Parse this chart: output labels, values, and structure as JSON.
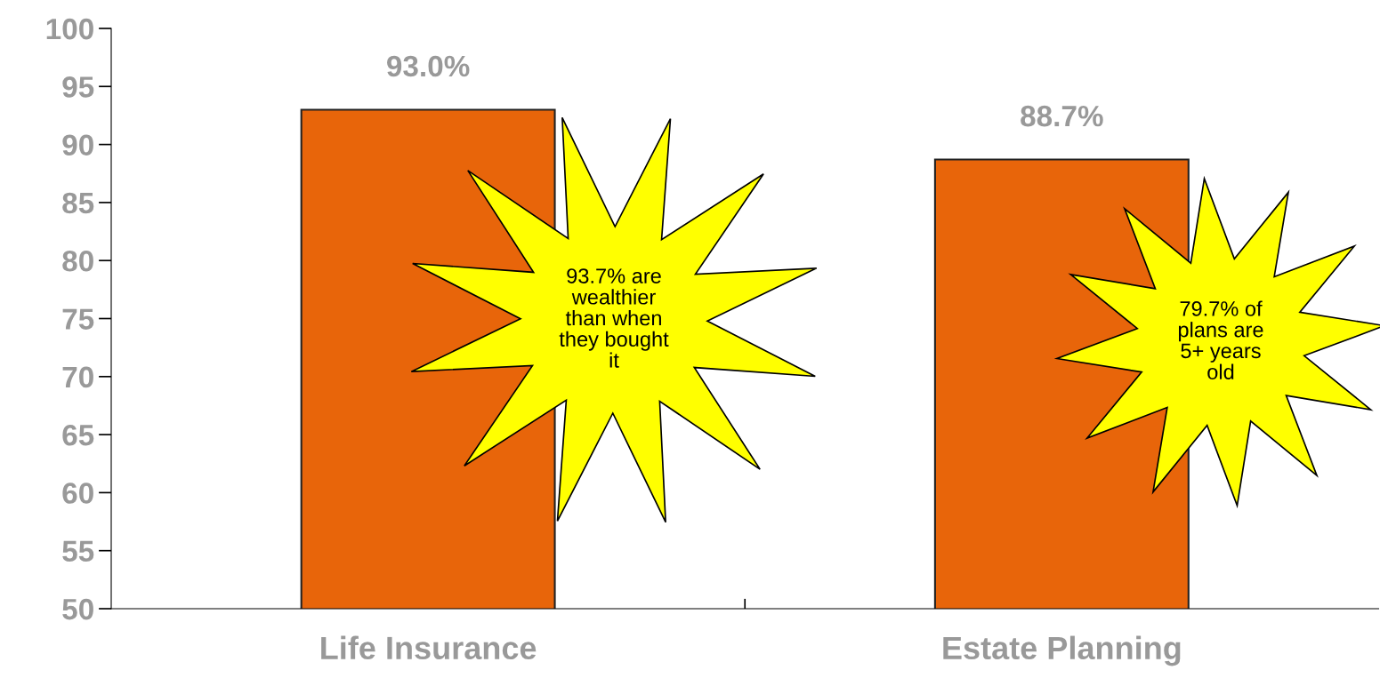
{
  "chart_data": {
    "type": "bar",
    "categories": [
      "Life Insurance",
      "Estate Planning"
    ],
    "values": [
      93.0,
      88.7
    ],
    "value_labels": [
      "93.0%",
      "88.7%"
    ],
    "color": "#e8650a",
    "ylim": [
      50,
      100
    ],
    "yticks": [
      50,
      55,
      60,
      65,
      70,
      75,
      80,
      85,
      90,
      95,
      100
    ],
    "grid": false,
    "legend": false,
    "annotations": [
      "93.7% are\nwealthier\nthan when\nthey bought\nit",
      "79.7% of\nplans are\n5+ years\nold"
    ]
  }
}
